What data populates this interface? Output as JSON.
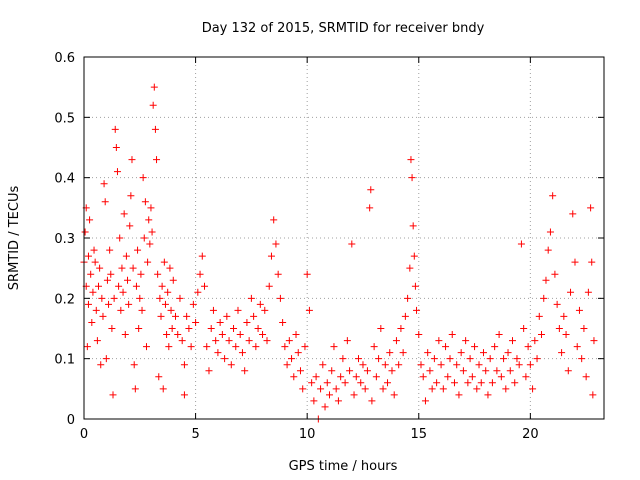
{
  "chart_data": {
    "type": "scatter",
    "title": "Day 132 of 2015, SRMTID for receiver bndy",
    "xlabel": "GPS time / hours",
    "ylabel": "SRMTID / TECUs",
    "xlim": [
      0,
      23.3
    ],
    "ylim": [
      0,
      0.6
    ],
    "x_ticks": [
      0,
      5,
      10,
      15,
      20
    ],
    "y_ticks": [
      0,
      0.1,
      0.2,
      0.3,
      0.4,
      0.5,
      0.6
    ],
    "x_tick_labels": [
      "0",
      "5",
      "10",
      "15",
      "20"
    ],
    "y_tick_labels": [
      "0",
      "0.1",
      "0.2",
      "0.3",
      "0.4",
      "0.5",
      "0.6"
    ],
    "grid": true,
    "marker": "+",
    "series_color": "#ff0000",
    "series": [
      {
        "name": "SRMTID",
        "points": [
          [
            0.0,
            0.26
          ],
          [
            0.05,
            0.31
          ],
          [
            0.1,
            0.22
          ],
          [
            0.1,
            0.35
          ],
          [
            0.15,
            0.12
          ],
          [
            0.2,
            0.27
          ],
          [
            0.2,
            0.19
          ],
          [
            0.25,
            0.33
          ],
          [
            0.3,
            0.24
          ],
          [
            0.35,
            0.16
          ],
          [
            0.4,
            0.21
          ],
          [
            0.45,
            0.28
          ],
          [
            0.5,
            0.26
          ],
          [
            0.55,
            0.18
          ],
          [
            0.6,
            0.13
          ],
          [
            0.65,
            0.22
          ],
          [
            0.7,
            0.25
          ],
          [
            0.75,
            0.09
          ],
          [
            0.8,
            0.2
          ],
          [
            0.85,
            0.17
          ],
          [
            0.9,
            0.39
          ],
          [
            0.95,
            0.36
          ],
          [
            1.0,
            0.1
          ],
          [
            1.05,
            0.23
          ],
          [
            1.1,
            0.19
          ],
          [
            1.15,
            0.28
          ],
          [
            1.2,
            0.24
          ],
          [
            1.25,
            0.15
          ],
          [
            1.3,
            0.04
          ],
          [
            1.35,
            0.2
          ],
          [
            1.4,
            0.48
          ],
          [
            1.45,
            0.45
          ],
          [
            1.5,
            0.41
          ],
          [
            1.55,
            0.22
          ],
          [
            1.6,
            0.3
          ],
          [
            1.65,
            0.18
          ],
          [
            1.7,
            0.25
          ],
          [
            1.75,
            0.21
          ],
          [
            1.8,
            0.34
          ],
          [
            1.85,
            0.14
          ],
          [
            1.9,
            0.27
          ],
          [
            1.95,
            0.23
          ],
          [
            2.0,
            0.19
          ],
          [
            2.05,
            0.32
          ],
          [
            2.1,
            0.37
          ],
          [
            2.15,
            0.43
          ],
          [
            2.2,
            0.25
          ],
          [
            2.25,
            0.09
          ],
          [
            2.3,
            0.05
          ],
          [
            2.35,
            0.22
          ],
          [
            2.4,
            0.28
          ],
          [
            2.45,
            0.15
          ],
          [
            2.5,
            0.2
          ],
          [
            2.55,
            0.24
          ],
          [
            2.6,
            0.18
          ],
          [
            2.65,
            0.4
          ],
          [
            2.7,
            0.3
          ],
          [
            2.75,
            0.36
          ],
          [
            2.8,
            0.12
          ],
          [
            2.85,
            0.26
          ],
          [
            2.9,
            0.33
          ],
          [
            2.95,
            0.29
          ],
          [
            3.0,
            0.35
          ],
          [
            3.05,
            0.31
          ],
          [
            3.1,
            0.52
          ],
          [
            3.15,
            0.55
          ],
          [
            3.2,
            0.48
          ],
          [
            3.25,
            0.43
          ],
          [
            3.3,
            0.24
          ],
          [
            3.35,
            0.07
          ],
          [
            3.4,
            0.2
          ],
          [
            3.45,
            0.17
          ],
          [
            3.5,
            0.22
          ],
          [
            3.55,
            0.05
          ],
          [
            3.6,
            0.26
          ],
          [
            3.65,
            0.19
          ],
          [
            3.7,
            0.14
          ],
          [
            3.75,
            0.21
          ],
          [
            3.8,
            0.12
          ],
          [
            3.85,
            0.25
          ],
          [
            3.9,
            0.18
          ],
          [
            3.95,
            0.15
          ],
          [
            4.0,
            0.23
          ],
          [
            4.1,
            0.17
          ],
          [
            4.2,
            0.14
          ],
          [
            4.3,
            0.2
          ],
          [
            4.4,
            0.13
          ],
          [
            4.5,
            0.09
          ],
          [
            4.5,
            0.04
          ],
          [
            4.6,
            0.17
          ],
          [
            4.7,
            0.15
          ],
          [
            4.8,
            0.12
          ],
          [
            4.9,
            0.19
          ],
          [
            5.0,
            0.16
          ],
          [
            5.1,
            0.21
          ],
          [
            5.2,
            0.24
          ],
          [
            5.3,
            0.27
          ],
          [
            5.4,
            0.22
          ],
          [
            5.5,
            0.12
          ],
          [
            5.6,
            0.08
          ],
          [
            5.7,
            0.15
          ],
          [
            5.8,
            0.18
          ],
          [
            5.9,
            0.13
          ],
          [
            6.0,
            0.11
          ],
          [
            6.1,
            0.16
          ],
          [
            6.2,
            0.14
          ],
          [
            6.3,
            0.1
          ],
          [
            6.4,
            0.17
          ],
          [
            6.5,
            0.13
          ],
          [
            6.6,
            0.09
          ],
          [
            6.7,
            0.15
          ],
          [
            6.8,
            0.12
          ],
          [
            6.9,
            0.18
          ],
          [
            7.0,
            0.14
          ],
          [
            7.1,
            0.11
          ],
          [
            7.2,
            0.08
          ],
          [
            7.3,
            0.16
          ],
          [
            7.4,
            0.13
          ],
          [
            7.5,
            0.2
          ],
          [
            7.6,
            0.17
          ],
          [
            7.7,
            0.12
          ],
          [
            7.8,
            0.15
          ],
          [
            7.9,
            0.19
          ],
          [
            8.0,
            0.14
          ],
          [
            8.1,
            0.18
          ],
          [
            8.2,
            0.13
          ],
          [
            8.3,
            0.22
          ],
          [
            8.4,
            0.27
          ],
          [
            8.5,
            0.33
          ],
          [
            8.6,
            0.29
          ],
          [
            8.7,
            0.24
          ],
          [
            8.8,
            0.2
          ],
          [
            8.9,
            0.16
          ],
          [
            9.0,
            0.12
          ],
          [
            9.1,
            0.09
          ],
          [
            9.2,
            0.13
          ],
          [
            9.3,
            0.1
          ],
          [
            9.4,
            0.07
          ],
          [
            9.5,
            0.14
          ],
          [
            9.6,
            0.11
          ],
          [
            9.7,
            0.08
          ],
          [
            9.8,
            0.05
          ],
          [
            9.9,
            0.12
          ],
          [
            10.0,
            0.24
          ],
          [
            10.1,
            0.18
          ],
          [
            10.2,
            0.06
          ],
          [
            10.3,
            0.03
          ],
          [
            10.4,
            0.07
          ],
          [
            10.5,
            0.0
          ],
          [
            10.6,
            0.05
          ],
          [
            10.7,
            0.09
          ],
          [
            10.8,
            0.02
          ],
          [
            10.9,
            0.06
          ],
          [
            11.0,
            0.04
          ],
          [
            11.1,
            0.08
          ],
          [
            11.2,
            0.12
          ],
          [
            11.3,
            0.05
          ],
          [
            11.4,
            0.03
          ],
          [
            11.5,
            0.07
          ],
          [
            11.6,
            0.1
          ],
          [
            11.7,
            0.06
          ],
          [
            11.8,
            0.13
          ],
          [
            11.9,
            0.08
          ],
          [
            12.0,
            0.29
          ],
          [
            12.1,
            0.04
          ],
          [
            12.2,
            0.07
          ],
          [
            12.3,
            0.1
          ],
          [
            12.4,
            0.06
          ],
          [
            12.5,
            0.09
          ],
          [
            12.6,
            0.05
          ],
          [
            12.7,
            0.08
          ],
          [
            12.8,
            0.35
          ],
          [
            12.85,
            0.38
          ],
          [
            12.9,
            0.03
          ],
          [
            13.0,
            0.12
          ],
          [
            13.1,
            0.07
          ],
          [
            13.2,
            0.1
          ],
          [
            13.3,
            0.15
          ],
          [
            13.4,
            0.05
          ],
          [
            13.5,
            0.09
          ],
          [
            13.6,
            0.06
          ],
          [
            13.7,
            0.11
          ],
          [
            13.8,
            0.08
          ],
          [
            13.9,
            0.04
          ],
          [
            14.0,
            0.13
          ],
          [
            14.1,
            0.09
          ],
          [
            14.2,
            0.15
          ],
          [
            14.3,
            0.11
          ],
          [
            14.4,
            0.17
          ],
          [
            14.5,
            0.2
          ],
          [
            14.6,
            0.25
          ],
          [
            14.65,
            0.43
          ],
          [
            14.7,
            0.4
          ],
          [
            14.75,
            0.32
          ],
          [
            14.8,
            0.27
          ],
          [
            14.85,
            0.22
          ],
          [
            14.9,
            0.18
          ],
          [
            15.0,
            0.14
          ],
          [
            15.1,
            0.09
          ],
          [
            15.2,
            0.07
          ],
          [
            15.3,
            0.03
          ],
          [
            15.4,
            0.11
          ],
          [
            15.5,
            0.08
          ],
          [
            15.6,
            0.05
          ],
          [
            15.7,
            0.1
          ],
          [
            15.8,
            0.06
          ],
          [
            15.9,
            0.13
          ],
          [
            16.0,
            0.09
          ],
          [
            16.1,
            0.05
          ],
          [
            16.2,
            0.12
          ],
          [
            16.3,
            0.07
          ],
          [
            16.4,
            0.1
          ],
          [
            16.5,
            0.14
          ],
          [
            16.6,
            0.06
          ],
          [
            16.7,
            0.09
          ],
          [
            16.8,
            0.04
          ],
          [
            16.9,
            0.11
          ],
          [
            17.0,
            0.08
          ],
          [
            17.1,
            0.13
          ],
          [
            17.2,
            0.06
          ],
          [
            17.3,
            0.1
          ],
          [
            17.4,
            0.07
          ],
          [
            17.5,
            0.12
          ],
          [
            17.6,
            0.05
          ],
          [
            17.7,
            0.09
          ],
          [
            17.8,
            0.06
          ],
          [
            17.9,
            0.11
          ],
          [
            18.0,
            0.08
          ],
          [
            18.1,
            0.04
          ],
          [
            18.2,
            0.1
          ],
          [
            18.3,
            0.06
          ],
          [
            18.4,
            0.12
          ],
          [
            18.5,
            0.08
          ],
          [
            18.6,
            0.14
          ],
          [
            18.7,
            0.07
          ],
          [
            18.8,
            0.1
          ],
          [
            18.9,
            0.05
          ],
          [
            19.0,
            0.11
          ],
          [
            19.1,
            0.08
          ],
          [
            19.2,
            0.13
          ],
          [
            19.3,
            0.06
          ],
          [
            19.4,
            0.1
          ],
          [
            19.5,
            0.09
          ],
          [
            19.6,
            0.29
          ],
          [
            19.7,
            0.15
          ],
          [
            19.8,
            0.07
          ],
          [
            19.9,
            0.12
          ],
          [
            20.0,
            0.09
          ],
          [
            20.1,
            0.05
          ],
          [
            20.2,
            0.13
          ],
          [
            20.3,
            0.1
          ],
          [
            20.4,
            0.17
          ],
          [
            20.5,
            0.14
          ],
          [
            20.6,
            0.2
          ],
          [
            20.7,
            0.23
          ],
          [
            20.8,
            0.28
          ],
          [
            20.9,
            0.31
          ],
          [
            21.0,
            0.37
          ],
          [
            21.1,
            0.24
          ],
          [
            21.2,
            0.19
          ],
          [
            21.3,
            0.15
          ],
          [
            21.4,
            0.11
          ],
          [
            21.5,
            0.17
          ],
          [
            21.6,
            0.14
          ],
          [
            21.7,
            0.08
          ],
          [
            21.8,
            0.21
          ],
          [
            21.9,
            0.34
          ],
          [
            22.0,
            0.26
          ],
          [
            22.1,
            0.12
          ],
          [
            22.2,
            0.18
          ],
          [
            22.3,
            0.1
          ],
          [
            22.4,
            0.15
          ],
          [
            22.5,
            0.07
          ],
          [
            22.6,
            0.21
          ],
          [
            22.7,
            0.35
          ],
          [
            22.75,
            0.26
          ],
          [
            22.8,
            0.04
          ],
          [
            22.85,
            0.13
          ]
        ]
      }
    ]
  }
}
